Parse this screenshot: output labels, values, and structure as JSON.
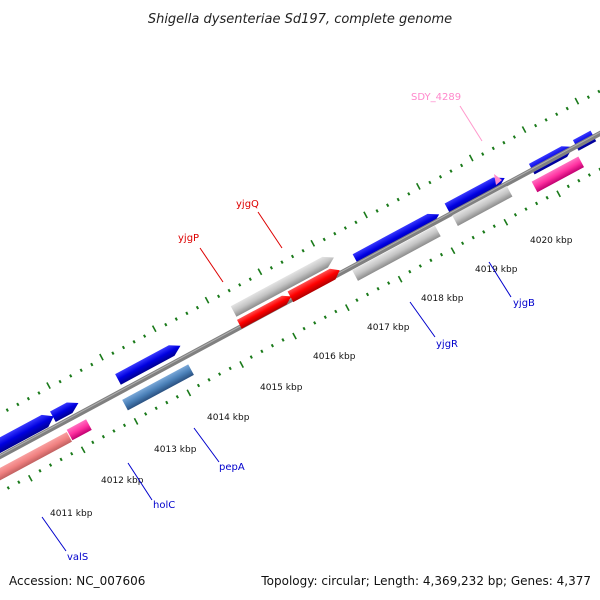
{
  "title": "Shigella dysenteriae Sd197, complete genome",
  "footer": {
    "accession": "Accession: NC_007606",
    "topology": "Topology: circular; Length: 4,369,232 bp; Genes: 4,377"
  },
  "kbp_labels": [
    "4011 kbp",
    "4012 kbp",
    "4013 kbp",
    "4014 kbp",
    "4015 kbp",
    "4016 kbp",
    "4017 kbp",
    "4018 kbp",
    "4019 kbp",
    "4020 kbp"
  ],
  "gene_labels": [
    {
      "name": "valS",
      "color": "#0000cc"
    },
    {
      "name": "holC",
      "color": "#0000cc"
    },
    {
      "name": "pepA",
      "color": "#0000cc"
    },
    {
      "name": "yjgP",
      "color": "#dd0000"
    },
    {
      "name": "yjgQ",
      "color": "#dd0000"
    },
    {
      "name": "yjgR",
      "color": "#0000cc"
    },
    {
      "name": "yjgB",
      "color": "#0000cc"
    },
    {
      "name": "SDY_4289",
      "color": "#ff88cc"
    }
  ],
  "colors": {
    "backbone": "#808080",
    "gene_blue": "#0000dd",
    "gene_red": "#ff0000",
    "gene_gray": "#c4c4c4",
    "gene_pink": "#ff44aa",
    "gene_salmon": "#f08080",
    "gene_steel": "#4a80b8",
    "ticks": "#1a7a1a"
  }
}
